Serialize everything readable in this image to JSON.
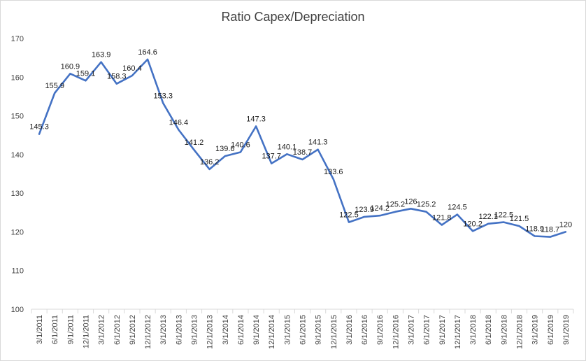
{
  "chart_data": {
    "type": "line",
    "title": "Ratio Capex/Depreciation",
    "xlabel": "",
    "ylabel": "",
    "ylim": [
      100,
      170
    ],
    "yticks": [
      100,
      110,
      120,
      130,
      140,
      150,
      160,
      170
    ],
    "grid": false,
    "legend": "none",
    "colors": {
      "series": "#4472c4",
      "axis": "#d9d9d9",
      "text": "#404040"
    },
    "categories": [
      "3/1/2011",
      "6/1/2011",
      "9/1/2011",
      "12/1/2011",
      "3/1/2012",
      "6/1/2012",
      "9/1/2012",
      "12/1/2012",
      "3/1/2013",
      "6/1/2013",
      "9/1/2013",
      "12/1/2013",
      "3/1/2014",
      "6/1/2014",
      "9/1/2014",
      "12/1/2014",
      "3/1/2015",
      "6/1/2015",
      "9/1/2015",
      "12/1/2015",
      "3/1/2016",
      "6/1/2016",
      "9/1/2016",
      "12/1/2016",
      "3/1/2017",
      "6/1/2017",
      "9/1/2017",
      "12/1/2017",
      "3/1/2018",
      "6/1/2018",
      "9/1/2018",
      "12/1/2018",
      "3/1/2019",
      "6/1/2019",
      "9/1/2019"
    ],
    "series": [
      {
        "values": [
          145.3,
          155.9,
          160.9,
          159.1,
          163.9,
          158.3,
          160.4,
          164.6,
          153.3,
          146.4,
          141.2,
          136.2,
          139.6,
          140.6,
          147.3,
          137.7,
          140.1,
          138.7,
          141.3,
          133.6,
          122.5,
          123.9,
          124.2,
          125.2,
          126,
          125.2,
          121.8,
          124.5,
          120.2,
          122.1,
          122.5,
          121.5,
          118.9,
          118.7,
          120
        ]
      }
    ]
  }
}
